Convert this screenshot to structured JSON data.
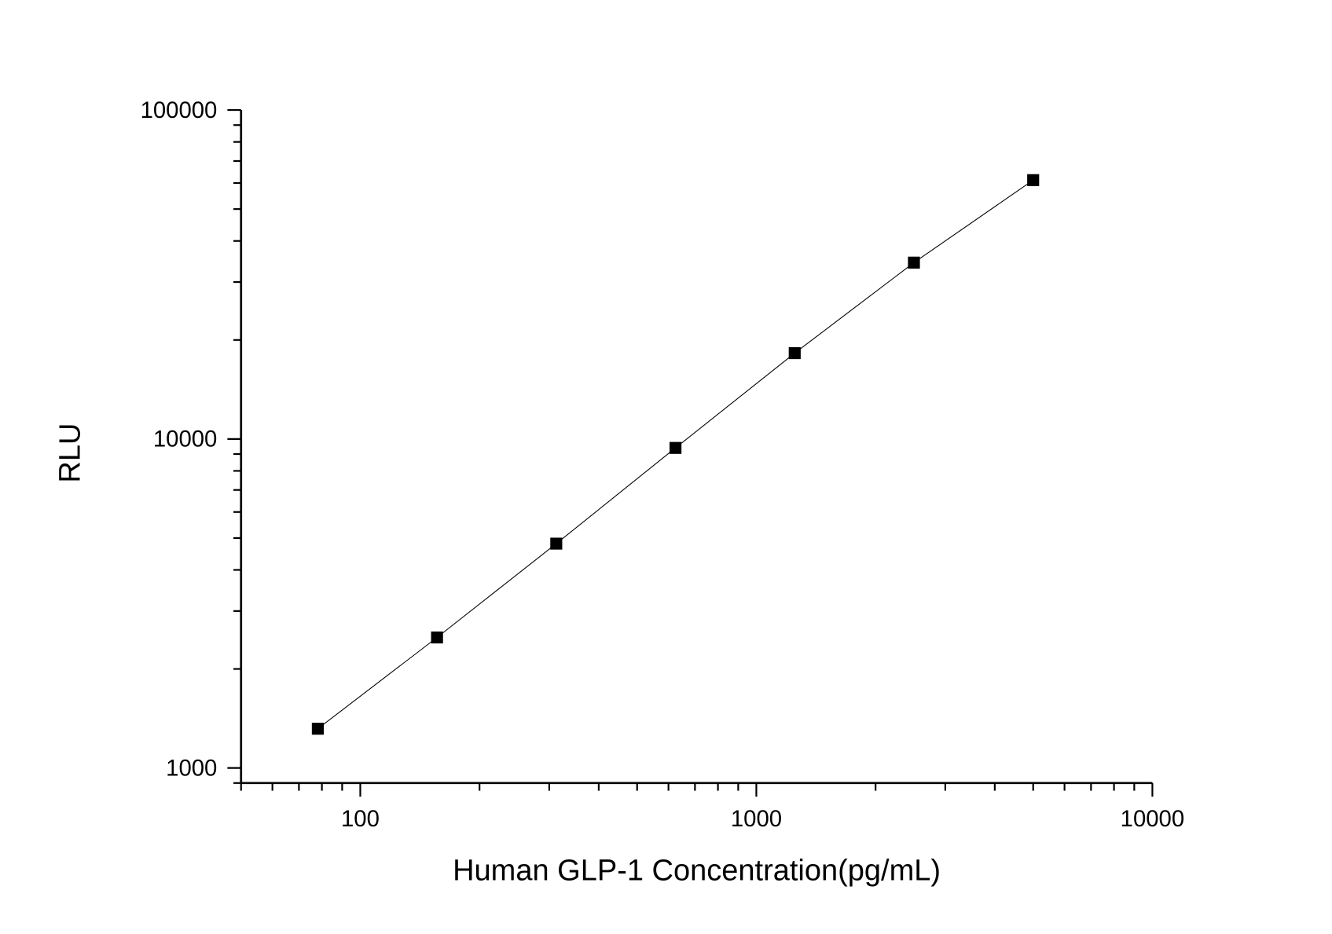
{
  "chart_data": {
    "type": "line",
    "title": "",
    "xlabel": "Human GLP-1 Concentration(pg/mL)",
    "ylabel": "RLU",
    "xscale": "log",
    "yscale": "log",
    "xlim": [
      50,
      10000
    ],
    "ylim": [
      900,
      100000
    ],
    "x_ticks": [
      100,
      1000,
      10000
    ],
    "x_tick_labels": [
      "100",
      "1000",
      "10000"
    ],
    "y_ticks": [
      1000,
      10000,
      100000
    ],
    "y_tick_labels": [
      "1000",
      "10000",
      "100000"
    ],
    "grid": false,
    "legend": "none",
    "marker": "square",
    "color": "#000000",
    "series": [
      {
        "x": [
          78.125,
          156.25,
          312.5,
          625,
          1250,
          2500,
          5000
        ],
        "y": [
          1316,
          2493,
          4808,
          9395,
          18240,
          34370,
          61230
        ]
      }
    ]
  }
}
